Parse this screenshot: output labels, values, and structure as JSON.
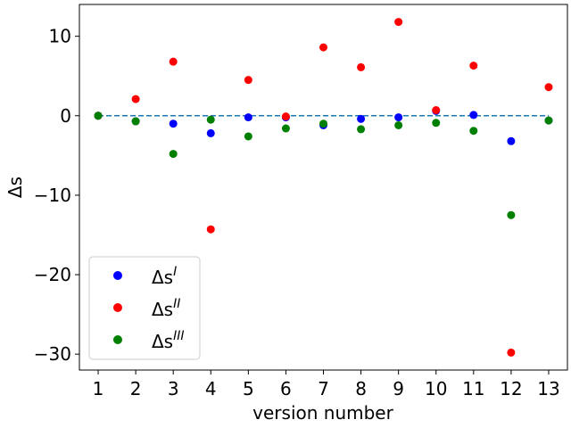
{
  "chart_data": {
    "type": "scatter",
    "title": "",
    "xlabel": "version number",
    "ylabel": "Δs",
    "x": [
      1,
      2,
      3,
      4,
      5,
      6,
      7,
      8,
      9,
      10,
      11,
      12,
      13
    ],
    "xlim": [
      0.5,
      13.5
    ],
    "ylim": [
      -32,
      14
    ],
    "xticks": [
      1,
      2,
      3,
      4,
      5,
      6,
      7,
      8,
      9,
      10,
      11,
      12,
      13
    ],
    "yticks": [
      10,
      0,
      -10,
      -20,
      -30
    ],
    "ytick_labels": [
      "10",
      "0",
      "−10",
      "−20",
      "−30"
    ],
    "grid": false,
    "legend_position": "lower-left",
    "reference_line": {
      "y": 0,
      "style": "dashed",
      "color": "#1f77b4",
      "x_range": [
        1,
        13
      ]
    },
    "series": [
      {
        "name_base": "Δs",
        "name_sup": "I",
        "color": "#0000ff",
        "values": [
          0.0,
          -0.7,
          -1.0,
          -2.2,
          -0.2,
          -0.2,
          -1.2,
          -0.4,
          -0.2,
          0.6,
          0.1,
          -3.2,
          -0.6
        ]
      },
      {
        "name_base": "Δs",
        "name_sup": "II",
        "color": "#ff0000",
        "values": [
          0.0,
          2.1,
          6.8,
          -14.3,
          4.5,
          -0.1,
          8.6,
          6.1,
          11.8,
          0.7,
          6.3,
          -29.8,
          3.6
        ]
      },
      {
        "name_base": "Δs",
        "name_sup": "III",
        "color": "#008000",
        "values": [
          0.0,
          -0.7,
          -4.8,
          -0.5,
          -2.6,
          -1.6,
          -1.0,
          -1.7,
          -1.2,
          -0.9,
          -1.9,
          -12.5,
          -0.6
        ]
      }
    ]
  }
}
